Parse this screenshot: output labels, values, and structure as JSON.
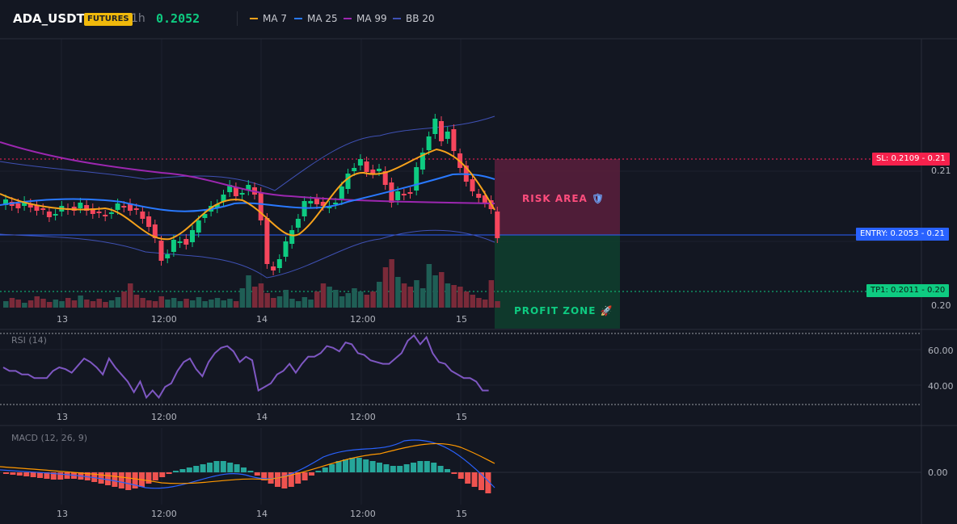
{
  "header": {
    "symbol": "ADA_USDT",
    "badge": "FUTURES",
    "interval": "1h",
    "price": "0.2052",
    "legend": [
      {
        "label": "MA 7",
        "color": "#f7a21b"
      },
      {
        "label": "MA 25",
        "color": "#2979ff"
      },
      {
        "label": "MA 99",
        "color": "#9c27b0"
      },
      {
        "label": "BB 20",
        "color": "#3f51b5"
      }
    ]
  },
  "main": {
    "price_ticks": [
      "0.21",
      "0.20"
    ],
    "time_ticks": [
      "13",
      "12:00",
      "14",
      "12:00",
      "15"
    ],
    "sl_tag": "SL: 0.2109",
    "sl_value": "0.21",
    "entry_tag": "ENTRY: 0.2053",
    "entry_value": "0.21",
    "tp_tag": "TP1: 0.2011",
    "tp_value": "0.20",
    "risk_label": "RISK AREA",
    "profit_label": "PROFIT ZONE",
    "colors": {
      "up": "#0ecb81",
      "down": "#f6465d",
      "sl": "#ff1f5a",
      "entry": "#2962ff",
      "tp": "#0ecb81"
    }
  },
  "rsi": {
    "label": "RSI (14)",
    "ticks": [
      "60.00",
      "40.00"
    ],
    "time_ticks": [
      "13",
      "12:00",
      "14",
      "12:00",
      "15"
    ],
    "color": "#7e57c2",
    "values": [
      50,
      48,
      48,
      46,
      46,
      44,
      44,
      44,
      48,
      50,
      49,
      47,
      51,
      55,
      53,
      50,
      46,
      55,
      50,
      46,
      42,
      36,
      42,
      33,
      37,
      33,
      39,
      41,
      48,
      53,
      55,
      49,
      45,
      53,
      58,
      61,
      62,
      59,
      53,
      56,
      54,
      37,
      39,
      41,
      46,
      48,
      52,
      47,
      52,
      56,
      56,
      58,
      62,
      61,
      59,
      64,
      63,
      58,
      57,
      54,
      53,
      52,
      52,
      55,
      58,
      65,
      68,
      63,
      67,
      58,
      53,
      52,
      48,
      46,
      44,
      44,
      42,
      37,
      37
    ]
  },
  "macd": {
    "label": "MACD (12, 26, 9)",
    "ticks": [
      "0.00"
    ],
    "time_ticks": [
      "13",
      "12:00",
      "14",
      "12:00",
      "15"
    ],
    "macd_color": "#2962ff",
    "signal_color": "#ff9800",
    "hist_up_color": "#26a69a",
    "hist_down_color": "#ef5350"
  }
}
